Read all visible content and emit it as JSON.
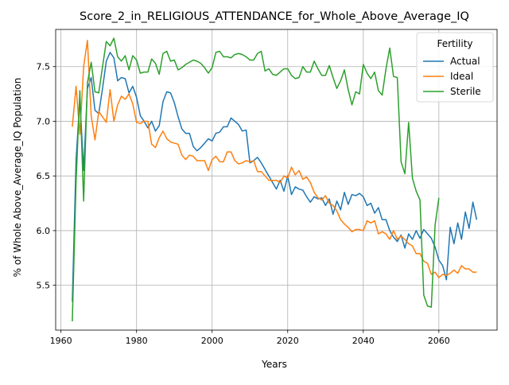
{
  "chart_data": {
    "type": "line",
    "title": "Score_2_in_RELIGIOUS_ATTENDANCE_for_Whole_Above_Average_IQ",
    "xlabel": "Years",
    "ylabel": "% of Whole Above_Average_IQ Population",
    "xlim": [
      1958.6,
      2075.4
    ],
    "ylim": [
      5.09,
      7.84
    ],
    "xticks": [
      1960,
      1980,
      2000,
      2020,
      2040,
      2060
    ],
    "yticks": [
      5.5,
      6.0,
      6.5,
      7.0,
      7.5
    ],
    "grid": true,
    "legend": {
      "title": "Fertility",
      "placement": "top-right"
    },
    "series": [
      {
        "name": "Actual",
        "color": "#1f77b4",
        "x": [
          1963,
          1964,
          1965,
          1966,
          1967,
          1968,
          1969,
          1970,
          1971,
          1972,
          1973,
          1974,
          1975,
          1976,
          1977,
          1978,
          1979,
          1980,
          1981,
          1982,
          1983,
          1984,
          1985,
          1986,
          1987,
          1988,
          1989,
          1990,
          1991,
          1992,
          1993,
          1994,
          1995,
          1996,
          1997,
          1998,
          1999,
          2000,
          2001,
          2002,
          2003,
          2004,
          2005,
          2006,
          2007,
          2008,
          2009,
          2010,
          2011,
          2012,
          2013,
          2014,
          2015,
          2016,
          2017,
          2018,
          2019,
          2020,
          2021,
          2022,
          2023,
          2024,
          2025,
          2026,
          2027,
          2028,
          2029,
          2030,
          2031,
          2032,
          2033,
          2034,
          2035,
          2036,
          2037,
          2038,
          2039,
          2040,
          2041,
          2042,
          2043,
          2044,
          2045,
          2046,
          2047,
          2048,
          2049,
          2050,
          2051,
          2052,
          2053,
          2054,
          2055,
          2056,
          2057,
          2058,
          2059,
          2060,
          2061,
          2062,
          2063,
          2064,
          2065,
          2066,
          2067,
          2068,
          2069,
          2070
        ],
        "y": [
          5.35,
          6.65,
          7.2,
          6.55,
          7.3,
          7.4,
          7.1,
          7.07,
          7.3,
          7.55,
          7.63,
          7.58,
          7.37,
          7.4,
          7.39,
          7.26,
          7.32,
          7.22,
          7.05,
          7.0,
          6.94,
          7.0,
          6.91,
          6.96,
          7.18,
          7.27,
          7.26,
          7.17,
          7.04,
          6.93,
          6.89,
          6.89,
          6.77,
          6.73,
          6.76,
          6.8,
          6.84,
          6.82,
          6.89,
          6.9,
          6.95,
          6.95,
          7.03,
          7.0,
          6.97,
          6.91,
          6.92,
          6.62,
          6.64,
          6.67,
          6.62,
          6.56,
          6.5,
          6.44,
          6.38,
          6.46,
          6.36,
          6.5,
          6.33,
          6.4,
          6.38,
          6.37,
          6.31,
          6.26,
          6.31,
          6.29,
          6.3,
          6.23,
          6.29,
          6.15,
          6.27,
          6.19,
          6.35,
          6.24,
          6.33,
          6.32,
          6.34,
          6.31,
          6.23,
          6.25,
          6.16,
          6.21,
          6.1,
          6.1,
          6.0,
          5.94,
          5.9,
          5.96,
          5.84,
          5.97,
          5.92,
          6.0,
          5.93,
          6.01,
          5.97,
          5.93,
          5.85,
          5.73,
          5.68,
          5.55,
          6.03,
          5.88,
          6.07,
          5.92,
          6.17,
          6.02,
          6.26,
          6.1
        ]
      },
      {
        "name": "Ideal",
        "color": "#ff7f0e",
        "x": [
          1963,
          1964,
          1965,
          1966,
          1967,
          1968,
          1969,
          1970,
          1971,
          1972,
          1973,
          1974,
          1975,
          1976,
          1977,
          1978,
          1979,
          1980,
          1981,
          1982,
          1983,
          1984,
          1985,
          1986,
          1987,
          1988,
          1989,
          1990,
          1991,
          1992,
          1993,
          1994,
          1995,
          1996,
          1997,
          1998,
          1999,
          2000,
          2001,
          2002,
          2003,
          2004,
          2005,
          2006,
          2007,
          2008,
          2009,
          2010,
          2011,
          2012,
          2013,
          2014,
          2015,
          2016,
          2017,
          2018,
          2019,
          2020,
          2021,
          2022,
          2023,
          2024,
          2025,
          2026,
          2027,
          2028,
          2029,
          2030,
          2031,
          2032,
          2033,
          2034,
          2035,
          2036,
          2037,
          2038,
          2039,
          2040,
          2041,
          2042,
          2043,
          2044,
          2045,
          2046,
          2047,
          2048,
          2049,
          2050,
          2051,
          2052,
          2053,
          2054,
          2055,
          2056,
          2057,
          2058,
          2059,
          2060,
          2061,
          2062,
          2063,
          2064,
          2065,
          2066,
          2067,
          2068,
          2069,
          2070
        ],
        "y": [
          6.95,
          7.32,
          6.88,
          7.5,
          7.74,
          7.05,
          6.83,
          7.09,
          7.04,
          6.99,
          7.29,
          7.0,
          7.15,
          7.23,
          7.2,
          7.25,
          7.16,
          6.99,
          6.98,
          7.0,
          7.0,
          6.79,
          6.76,
          6.85,
          6.91,
          6.84,
          6.81,
          6.8,
          6.79,
          6.69,
          6.65,
          6.69,
          6.68,
          6.64,
          6.64,
          6.64,
          6.55,
          6.65,
          6.68,
          6.63,
          6.63,
          6.72,
          6.72,
          6.64,
          6.61,
          6.62,
          6.64,
          6.63,
          6.64,
          6.54,
          6.54,
          6.5,
          6.46,
          6.46,
          6.46,
          6.44,
          6.5,
          6.48,
          6.58,
          6.51,
          6.55,
          6.47,
          6.49,
          6.44,
          6.35,
          6.3,
          6.28,
          6.32,
          6.25,
          6.23,
          6.18,
          6.1,
          6.06,
          6.03,
          5.99,
          6.01,
          6.01,
          6.0,
          6.09,
          6.07,
          6.09,
          5.97,
          5.99,
          5.97,
          5.92,
          6.0,
          5.92,
          5.95,
          5.92,
          5.88,
          5.86,
          5.79,
          5.79,
          5.72,
          5.7,
          5.6,
          5.62,
          5.57,
          5.6,
          5.59,
          5.61,
          5.64,
          5.61,
          5.68,
          5.65,
          5.65,
          5.62,
          5.62
        ],
        "y_note": ""
      },
      {
        "name": "Sterile",
        "color": "#2ca02c",
        "x": [
          1963,
          1964,
          1965,
          1966,
          1967,
          1968,
          1969,
          1970,
          1971,
          1972,
          1973,
          1974,
          1975,
          1976,
          1977,
          1978,
          1979,
          1980,
          1981,
          1982,
          1983,
          1984,
          1985,
          1986,
          1987,
          1988,
          1989,
          1990,
          1991,
          1992,
          1993,
          1994,
          1995,
          1996,
          1997,
          1998,
          1999,
          2000,
          2001,
          2002,
          2003,
          2004,
          2005,
          2006,
          2007,
          2008,
          2009,
          2010,
          2011,
          2012,
          2013,
          2014,
          2015,
          2016,
          2017,
          2018,
          2019,
          2020,
          2021,
          2022,
          2023,
          2024,
          2025,
          2026,
          2027,
          2028,
          2029,
          2030,
          2031,
          2032,
          2033,
          2034,
          2035,
          2036,
          2037,
          2038,
          2039,
          2040,
          2041,
          2042,
          2043,
          2044,
          2045,
          2046,
          2047,
          2048,
          2049,
          2050,
          2051,
          2052,
          2053,
          2054,
          2055,
          2056,
          2057,
          2058,
          2059,
          2060
        ],
        "y": [
          5.17,
          6.45,
          7.28,
          6.27,
          7.35,
          7.54,
          7.27,
          7.26,
          7.5,
          7.73,
          7.69,
          7.76,
          7.59,
          7.55,
          7.6,
          7.47,
          7.6,
          7.56,
          7.44,
          7.45,
          7.45,
          7.57,
          7.53,
          7.43,
          7.62,
          7.64,
          7.55,
          7.56,
          7.47,
          7.49,
          7.52,
          7.54,
          7.56,
          7.55,
          7.53,
          7.49,
          7.44,
          7.49,
          7.63,
          7.64,
          7.59,
          7.59,
          7.58,
          7.61,
          7.62,
          7.61,
          7.59,
          7.56,
          7.56,
          7.62,
          7.64,
          7.46,
          7.48,
          7.43,
          7.42,
          7.45,
          7.48,
          7.48,
          7.42,
          7.39,
          7.4,
          7.5,
          7.45,
          7.45,
          7.55,
          7.48,
          7.42,
          7.42,
          7.51,
          7.4,
          7.3,
          7.37,
          7.47,
          7.29,
          7.15,
          7.27,
          7.25,
          7.52,
          7.44,
          7.39,
          7.45,
          7.28,
          7.24,
          7.48,
          7.67,
          7.41,
          7.4,
          6.63,
          6.52,
          6.99,
          6.48,
          6.36,
          6.28,
          5.41,
          5.31,
          5.3,
          6.05,
          6.3
        ]
      }
    ]
  }
}
